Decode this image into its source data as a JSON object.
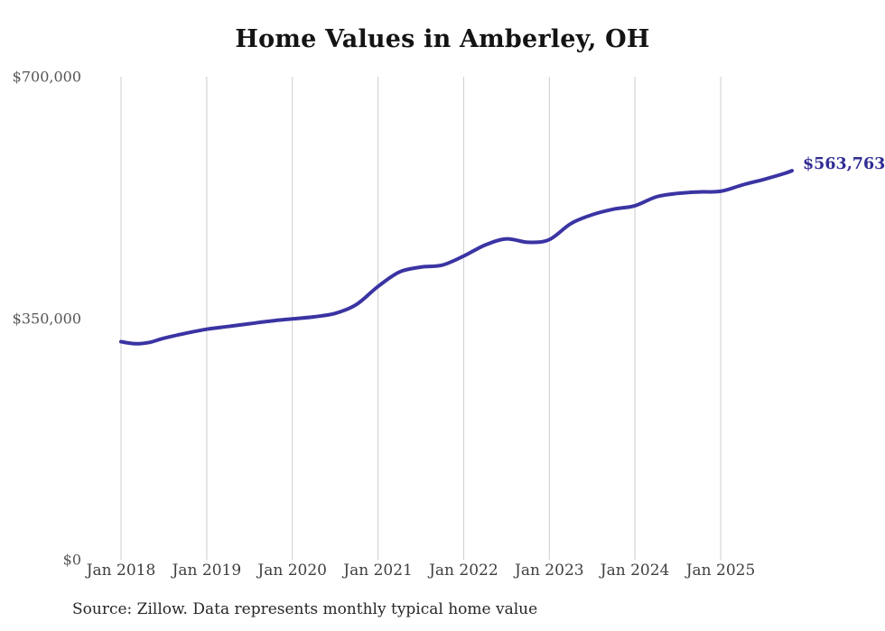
{
  "chart": {
    "title": "Home Values in Amberley, OH",
    "end_label": "$563,763",
    "source_note": "Source: Zillow. Data represents monthly typical home value"
  },
  "chart_data": {
    "type": "line",
    "title": "Home Values in Amberley, OH",
    "series_name": "Monthly typical home value",
    "x": [
      "2018-01",
      "2018-03",
      "2018-05",
      "2018-07",
      "2018-10",
      "2019-01",
      "2019-04",
      "2019-07",
      "2019-10",
      "2020-01",
      "2020-04",
      "2020-07",
      "2020-10",
      "2021-01",
      "2021-04",
      "2021-07",
      "2021-10",
      "2022-01",
      "2022-04",
      "2022-07",
      "2022-10",
      "2023-01",
      "2023-04",
      "2023-07",
      "2023-10",
      "2024-01",
      "2024-04",
      "2024-07",
      "2024-10",
      "2025-01",
      "2025-04",
      "2025-07",
      "2025-10",
      "2025-11"
    ],
    "values": [
      316000,
      313000,
      315000,
      321000,
      328000,
      334000,
      338000,
      342000,
      346000,
      349000,
      352000,
      357000,
      370000,
      396000,
      417000,
      424000,
      427000,
      440000,
      456000,
      465000,
      460000,
      464000,
      487000,
      500000,
      508000,
      513000,
      526000,
      531000,
      533000,
      534000,
      543000,
      551000,
      560000,
      563763
    ],
    "final_value": 563763,
    "end_label": "$563,763",
    "ylim": [
      0,
      700000
    ],
    "yticks": [
      {
        "value": 0,
        "label": "$0"
      },
      {
        "value": 350000,
        "label": "$350,000"
      },
      {
        "value": 700000,
        "label": "$700,000"
      }
    ],
    "xticks": [
      {
        "month": "2018-01",
        "label": "Jan 2018"
      },
      {
        "month": "2019-01",
        "label": "Jan 2019"
      },
      {
        "month": "2020-01",
        "label": "Jan 2020"
      },
      {
        "month": "2021-01",
        "label": "Jan 2021"
      },
      {
        "month": "2022-01",
        "label": "Jan 2022"
      },
      {
        "month": "2023-01",
        "label": "Jan 2023"
      },
      {
        "month": "2024-01",
        "label": "Jan 2024"
      },
      {
        "month": "2025-01",
        "label": "Jan 2025"
      }
    ],
    "grid": "vertical-only",
    "legend": "none",
    "line_color": "#3a34a3",
    "end_label_color": "#302c94",
    "grid_color": "#cccccc",
    "source_note": "Source: Zillow. Data represents monthly typical home value"
  }
}
